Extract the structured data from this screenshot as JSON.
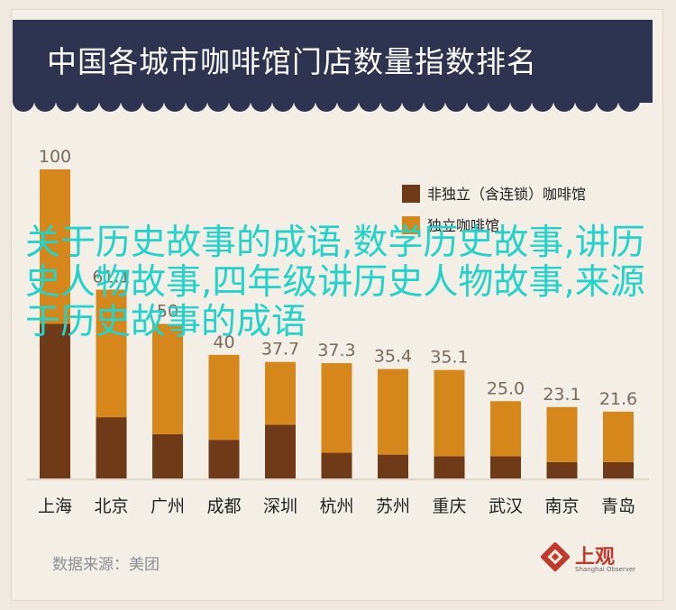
{
  "title": "中国各城市咖啡馆门店数量指数排名",
  "source": "数据来源：美团",
  "logo": {
    "text": "上观",
    "sub": "Shanghai Observer",
    "icon": "shanghai-observer-logo-icon"
  },
  "overlay_text": "关于历史故事的成语,数学历史故事,讲历史人物故事,四年级讲历史人物故事,来源于历史故事的成语",
  "colors": {
    "chain": "#6f3a17",
    "independent": "#d6871c",
    "header": "#2e3450",
    "background": "#f3eee6",
    "overlay": "#22d3c9"
  },
  "chart_data": {
    "type": "bar",
    "stacked": true,
    "categories": [
      "上海",
      "北京",
      "广州",
      "成都",
      "深圳",
      "杭州",
      "苏州",
      "重庆",
      "武汉",
      "南京",
      "青岛"
    ],
    "totals": [
      100,
      61.1,
      50,
      40,
      37.7,
      37.3,
      35.4,
      35.1,
      25.0,
      23.1,
      21.6
    ],
    "total_labels": [
      "100",
      "61.1",
      "50",
      "40",
      "37.7",
      "37.3",
      "35.4",
      "35.1",
      "25.0",
      "23.1",
      "21.6"
    ],
    "series": [
      {
        "name": "非独立（含连锁）咖啡馆",
        "values": [
          50,
          19.8,
          14.3,
          12.5,
          17.4,
          8.3,
          7.7,
          7.2,
          7.2,
          5.3,
          5.3
        ]
      },
      {
        "name": "独立咖啡馆",
        "values": [
          50,
          41.3,
          35.7,
          27.5,
          20.3,
          29.0,
          27.7,
          27.9,
          17.8,
          17.8,
          16.3
        ]
      }
    ],
    "ylim": [
      0,
      100
    ],
    "grid": false,
    "legend": "top-right"
  }
}
